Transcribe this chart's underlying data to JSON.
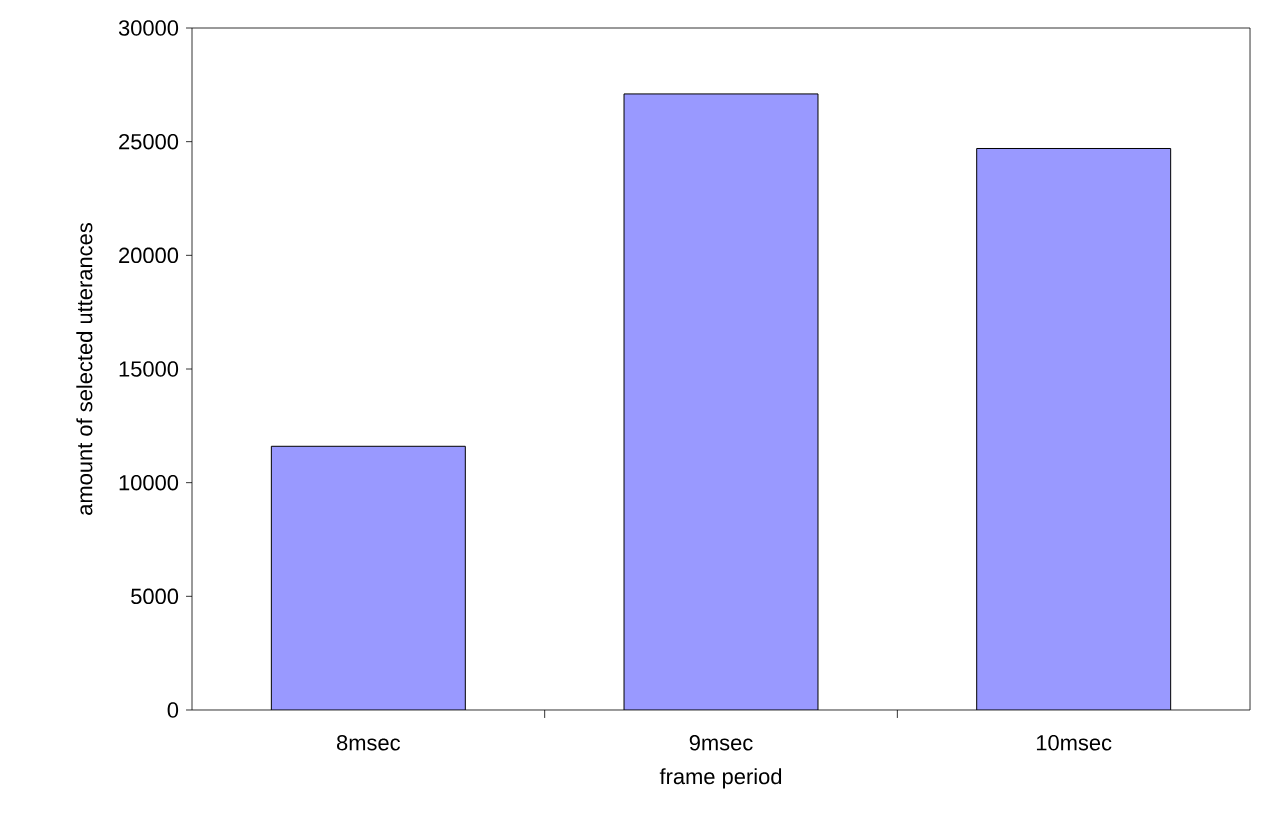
{
  "chart_data": {
    "type": "bar",
    "xlabel": "frame period",
    "ylabel": "amount of selected utterances",
    "categories": [
      "8msec",
      "9msec",
      "10msec"
    ],
    "values": [
      11600,
      27100,
      24700
    ],
    "color": "#9999ff",
    "ylim": [
      0,
      30000
    ],
    "yticks": [
      0,
      5000,
      10000,
      15000,
      20000,
      25000,
      30000
    ],
    "grid": false
  }
}
